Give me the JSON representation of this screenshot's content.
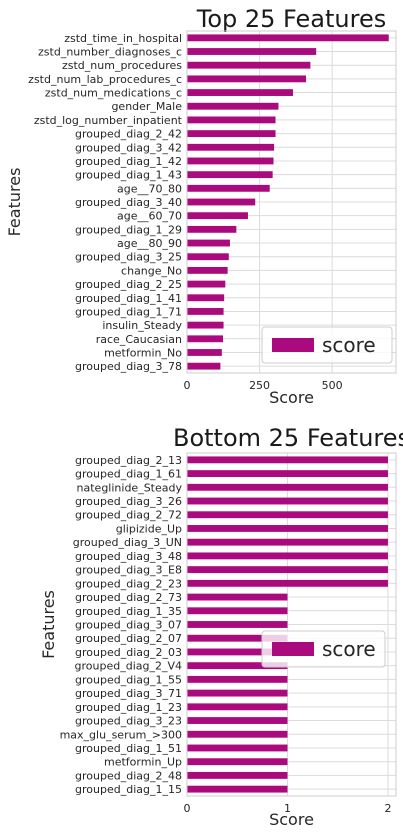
{
  "colors": {
    "bar": "#AB0A7E"
  },
  "chart_data": [
    {
      "type": "bar",
      "orientation": "horizontal",
      "title": "Top 25 Features",
      "xlabel": "Score",
      "ylabel": "Features",
      "xlim": [
        0,
        720
      ],
      "xticks": [
        0,
        250,
        500
      ],
      "xtick_labels": [
        "0",
        "250",
        "500"
      ],
      "grid": true,
      "legend": {
        "label": "score",
        "placement": "lower-right"
      },
      "categories": [
        "zstd_time_in_hospital",
        "zstd_number_diagnoses_c",
        "zstd_num_procedures",
        "zstd_num_lab_procedures_c",
        "zstd_num_medications_c",
        "gender_Male",
        "zstd_log_number_inpatient",
        "grouped_diag_2_42",
        "grouped_diag_3_42",
        "grouped_diag_1_42",
        "grouped_diag_1_43",
        "age__70_80",
        "grouped_diag_3_40",
        "age__60_70",
        "grouped_diag_1_29",
        "age__80_90",
        "grouped_diag_3_25",
        "change_No",
        "grouped_diag_2_25",
        "grouped_diag_1_41",
        "grouped_diag_1_71",
        "insulin_Steady",
        "race_Caucasian",
        "metformin_No",
        "grouped_diag_3_78"
      ],
      "series": [
        {
          "name": "score",
          "values": [
            695,
            445,
            425,
            410,
            365,
            315,
            305,
            305,
            300,
            298,
            295,
            285,
            235,
            210,
            170,
            148,
            144,
            140,
            132,
            128,
            126,
            126,
            124,
            120,
            115
          ]
        }
      ]
    },
    {
      "type": "bar",
      "orientation": "horizontal",
      "title": "Bottom 25 Features",
      "xlabel": "Score",
      "ylabel": "Features",
      "xlim": [
        0,
        2.08
      ],
      "xticks": [
        0,
        1,
        2
      ],
      "xtick_labels": [
        "0",
        "1",
        "2"
      ],
      "grid": true,
      "legend": {
        "label": "score",
        "placement": "center-right"
      },
      "categories": [
        "grouped_diag_2_13",
        "grouped_diag_1_61",
        "nateglinide_Steady",
        "grouped_diag_3_26",
        "grouped_diag_2_72",
        "glipizide_Up",
        "grouped_diag_3_UN",
        "grouped_diag_3_48",
        "grouped_diag_3_E8",
        "grouped_diag_2_23",
        "grouped_diag_2_73",
        "grouped_diag_1_35",
        "grouped_diag_3_07",
        "grouped_diag_2_07",
        "grouped_diag_2_03",
        "grouped_diag_2_V4",
        "grouped_diag_1_55",
        "grouped_diag_3_71",
        "grouped_diag_1_23",
        "grouped_diag_3_23",
        "max_glu_serum_>300",
        "grouped_diag_1_51",
        "metformin_Up",
        "grouped_diag_2_48",
        "grouped_diag_1_15"
      ],
      "series": [
        {
          "name": "score",
          "values": [
            2,
            2,
            2,
            2,
            2,
            2,
            2,
            2,
            2,
            2,
            1,
            1,
            1,
            1,
            1,
            1,
            1,
            1,
            1,
            1,
            1,
            1,
            1,
            1,
            1
          ]
        }
      ]
    }
  ]
}
